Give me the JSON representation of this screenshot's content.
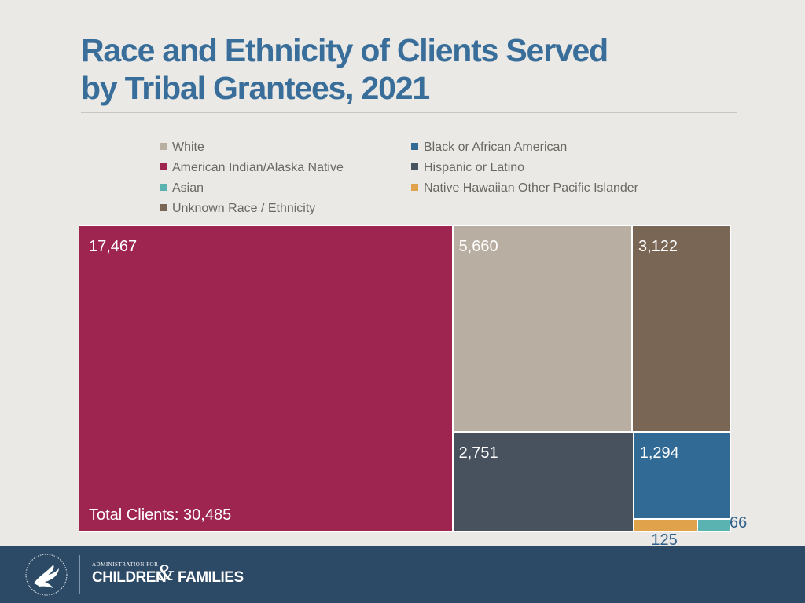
{
  "title": {
    "line1": "Race and Ethnicity of Clients Served",
    "line2": "by Tribal Grantees, 2021"
  },
  "chart_data": {
    "type": "treemap",
    "title": "Race and Ethnicity of Clients Served by Tribal Grantees, 2021",
    "total_label": "Total Clients: 30,485",
    "legend": [
      {
        "label": "White",
        "color": "#b9aea2"
      },
      {
        "label": "Black or African American",
        "color": "#326a96"
      },
      {
        "label": "American Indian/Alaska Native",
        "color": "#9e2550"
      },
      {
        "label": "Hispanic or Latino",
        "color": "#47525e"
      },
      {
        "label": "Asian",
        "color": "#5ab3b0"
      },
      {
        "label": "Native Hawaiian Other Pacific Islander",
        "color": "#e0a24a"
      },
      {
        "label": "Unknown Race / Ethnicity",
        "color": "#7a6654"
      }
    ],
    "series": [
      {
        "name": "American Indian/Alaska Native",
        "value": 17467,
        "label": "17,467",
        "color": "#9e2550"
      },
      {
        "name": "White",
        "value": 5660,
        "label": "5,660",
        "color": "#b9aea2"
      },
      {
        "name": "Unknown Race / Ethnicity",
        "value": 3122,
        "label": "3,122",
        "color": "#7a6654"
      },
      {
        "name": "Hispanic or Latino",
        "value": 2751,
        "label": "2,751",
        "color": "#47525e"
      },
      {
        "name": "Black or African American",
        "value": 1294,
        "label": "1,294",
        "color": "#326a96"
      },
      {
        "name": "Native Hawaiian Other Pacific Islander",
        "value": 125,
        "label": "125",
        "color": "#e0a24a"
      },
      {
        "name": "Asian",
        "value": 66,
        "label": "66",
        "color": "#5ab3b0"
      }
    ]
  },
  "footer": {
    "logo_top": "ADMINISTRATION FOR",
    "logo_children": "CHILDREN",
    "logo_amp": "&",
    "logo_families": "FAMILIES",
    "seal_icon": "hhs-eagle-seal-icon"
  }
}
